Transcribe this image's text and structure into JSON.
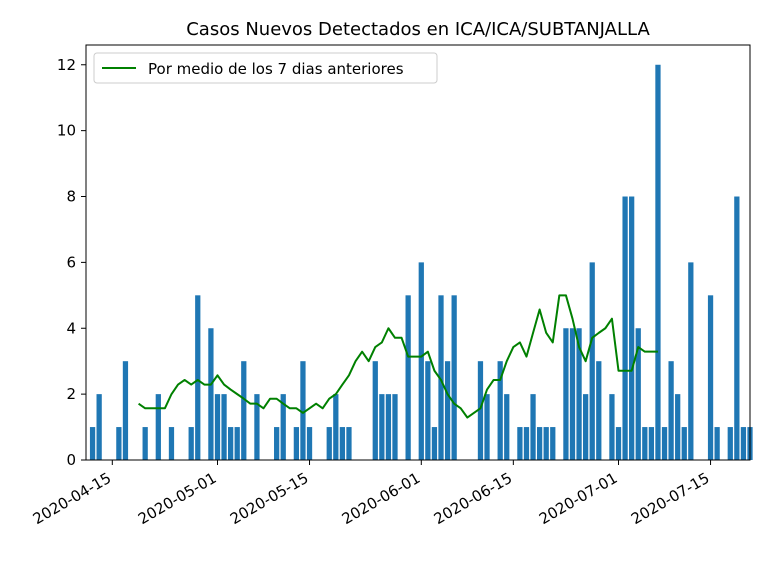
{
  "chart_data": {
    "type": "bar",
    "title": "Casos Nuevos Detectados en ICA/ICA/SUBTANJALLA",
    "xlabel": "",
    "ylabel": "",
    "x_start": "2020-04-12",
    "x_end": "2020-07-21",
    "xlim": [
      "2020-04-11",
      "2020-07-21"
    ],
    "ylim": [
      0,
      12.6
    ],
    "yticks": [
      0,
      2,
      4,
      6,
      8,
      10,
      12
    ],
    "xticks": [
      "2020-04-15",
      "2020-05-01",
      "2020-05-15",
      "2020-06-01",
      "2020-06-15",
      "2020-07-01",
      "2020-07-15"
    ],
    "bar_color": "#1f77b4",
    "line_color": "#008000",
    "grid": false,
    "legend_position": "top-left",
    "series": [
      {
        "type": "bar",
        "values": [
          1,
          2,
          0,
          0,
          1,
          3,
          0,
          0,
          1,
          0,
          2,
          0,
          1,
          0,
          0,
          1,
          5,
          0,
          4,
          2,
          2,
          1,
          1,
          3,
          0,
          2,
          0,
          0,
          1,
          2,
          0,
          1,
          3,
          1,
          0,
          0,
          1,
          2,
          1,
          1,
          0,
          0,
          0,
          3,
          2,
          2,
          2,
          0,
          5,
          0,
          6,
          3,
          1,
          5,
          3,
          5,
          0,
          0,
          0,
          3,
          2,
          0,
          3,
          2,
          0,
          1,
          1,
          2,
          1,
          1,
          1,
          0,
          4,
          4,
          4,
          2,
          6,
          3,
          0,
          2,
          1,
          8,
          8,
          4,
          1,
          1,
          12,
          1,
          3,
          2,
          1,
          6,
          0,
          0,
          5,
          1,
          0,
          1,
          8,
          1,
          1
        ]
      },
      {
        "type": "line",
        "name": "Por medio de los 7 dias anteriores",
        "start_offset": 7,
        "values": [
          1.71,
          1.57,
          1.57,
          1.57,
          1.57,
          2.0,
          2.29,
          2.43,
          2.29,
          2.43,
          2.29,
          2.29,
          2.57,
          2.29,
          2.14,
          2.0,
          1.86,
          1.71,
          1.71,
          1.57,
          1.86,
          1.86,
          1.71,
          1.57,
          1.57,
          1.43,
          1.57,
          1.71,
          1.57,
          1.86,
          2.0,
          2.29,
          2.57,
          3.0,
          3.29,
          3.0,
          3.43,
          3.57,
          4.0,
          3.71,
          3.71,
          3.14,
          3.14,
          3.14,
          3.29,
          2.71,
          2.43,
          2.0,
          1.71,
          1.57,
          1.29,
          1.43,
          1.57,
          2.14,
          2.43,
          2.43,
          3.0,
          3.43,
          3.57,
          3.14,
          3.86,
          4.57,
          3.86,
          3.57,
          5.0,
          5.0,
          4.29,
          3.43,
          3.0,
          3.71,
          3.86,
          4.0,
          4.29,
          2.71,
          2.71,
          2.71,
          3.43,
          3.29,
          3.29,
          3.29
        ]
      }
    ]
  }
}
